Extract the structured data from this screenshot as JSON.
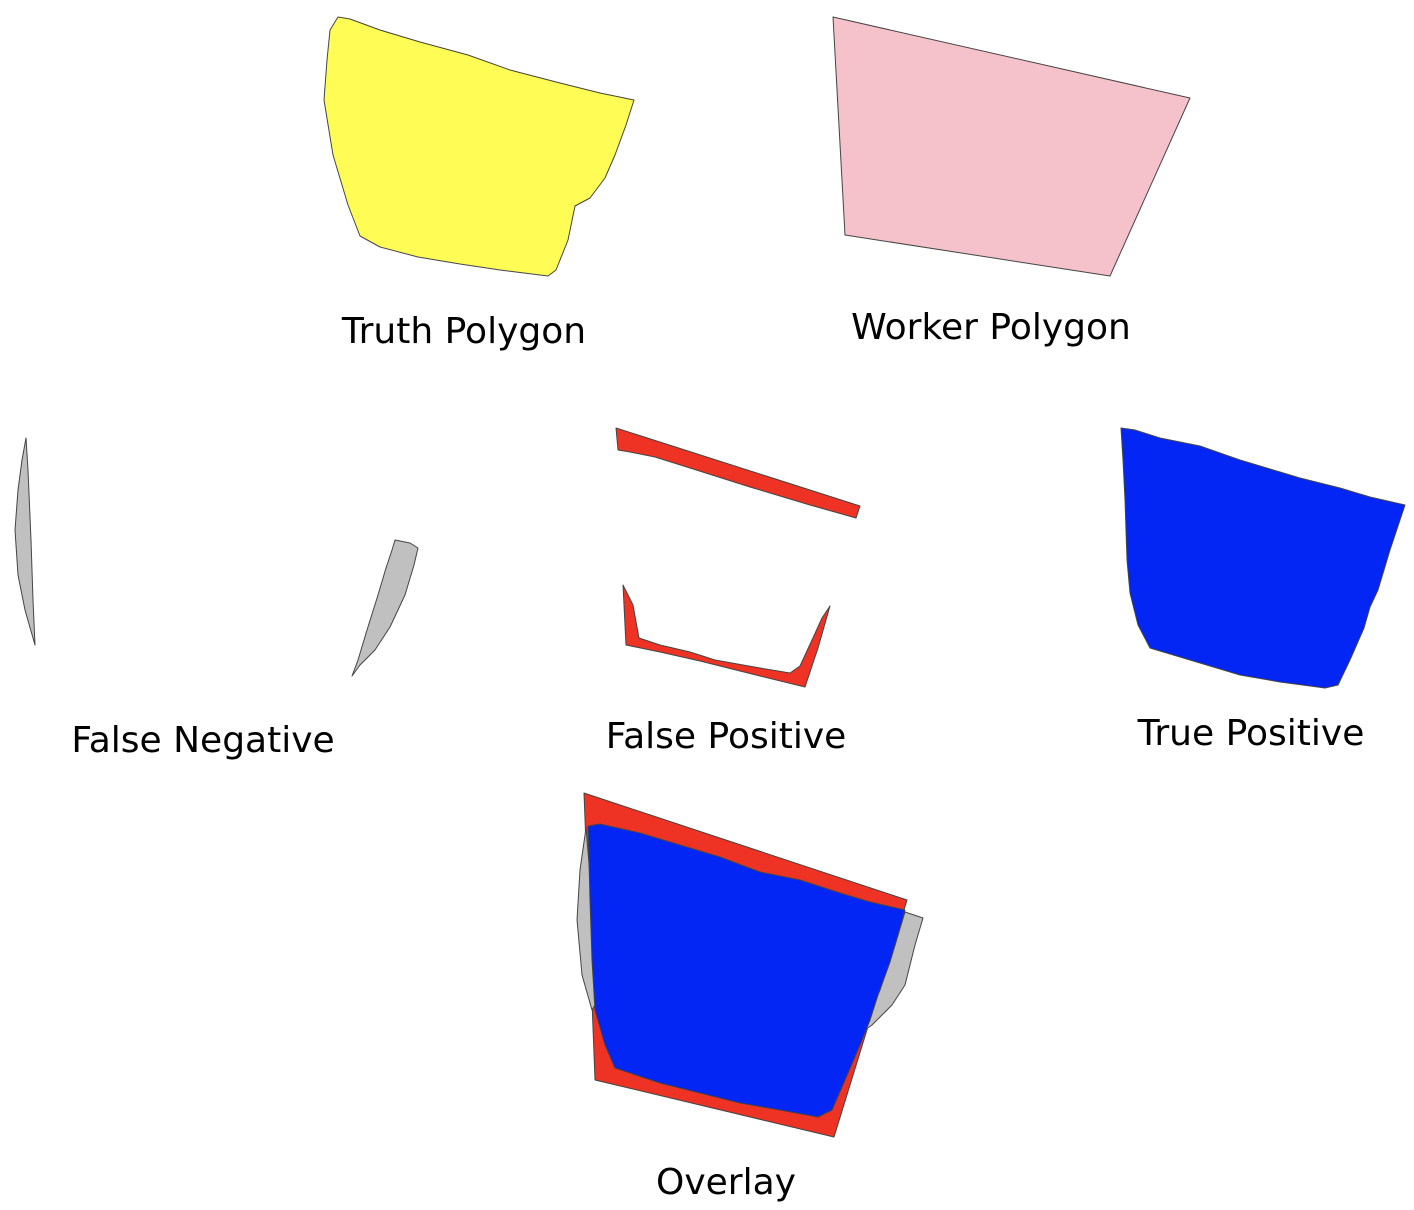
{
  "panels": {
    "truth": {
      "label": "Truth Polygon",
      "color": "#FFFC55"
    },
    "worker": {
      "label": "Worker Polygon",
      "color": "#F5C2CB"
    },
    "false_negative": {
      "label": "False Negative",
      "color": "#C0C0C0"
    },
    "false_positive": {
      "label": "False Positive",
      "color": "#EE3324"
    },
    "true_positive": {
      "label": "True Positive",
      "color": "#0326F5"
    },
    "overlay": {
      "label": "Overlay"
    }
  }
}
